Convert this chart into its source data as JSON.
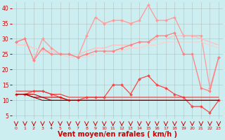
{
  "bg_color": "#cceef0",
  "grid_color": "#aaaaaa",
  "xlabel": "Vent moyen/en rafales ( km/h )",
  "xlabel_color": "#cc0000",
  "tick_color": "#cc0000",
  "xlim": [
    -0.5,
    23.5
  ],
  "ylim": [
    4,
    42
  ],
  "yticks": [
    5,
    10,
    15,
    20,
    25,
    30,
    35,
    40
  ],
  "xticks": [
    0,
    1,
    2,
    3,
    4,
    5,
    6,
    7,
    8,
    9,
    10,
    11,
    12,
    13,
    14,
    15,
    16,
    17,
    18,
    19,
    20,
    21,
    22,
    23
  ],
  "series": [
    {
      "x": [
        0,
        1,
        2,
        3,
        4,
        5,
        6,
        7,
        8,
        9,
        10,
        11,
        12,
        13,
        14,
        15,
        16,
        17,
        18,
        19,
        20,
        21,
        22,
        23
      ],
      "y": [
        29,
        30,
        23,
        30,
        27,
        25,
        25,
        24,
        31,
        37,
        35,
        36,
        36,
        35,
        36,
        41,
        36,
        36,
        37,
        31,
        31,
        31,
        14,
        24
      ],
      "color": "#ff9999",
      "lw": 0.9,
      "marker": "D",
      "ms": 2.0
    },
    {
      "x": [
        0,
        1,
        2,
        3,
        4,
        5,
        6,
        7,
        8,
        9,
        10,
        11,
        12,
        13,
        14,
        15,
        16,
        17,
        18,
        19,
        20,
        21,
        22,
        23
      ],
      "y": [
        28,
        28,
        27,
        26,
        26,
        25,
        25,
        25,
        26,
        27,
        27,
        28,
        28,
        28,
        29,
        29,
        30,
        30,
        31,
        31,
        31,
        30,
        29,
        28
      ],
      "color": "#ffbbbb",
      "lw": 0.8,
      "marker": null,
      "ms": 0
    },
    {
      "x": [
        0,
        1,
        2,
        3,
        4,
        5,
        6,
        7,
        8,
        9,
        10,
        11,
        12,
        13,
        14,
        15,
        16,
        17,
        18,
        19,
        20,
        21,
        22,
        23
      ],
      "y": [
        28,
        28,
        27,
        26,
        25,
        25,
        24,
        24,
        24,
        25,
        25,
        26,
        26,
        27,
        27,
        28,
        28,
        29,
        29,
        29,
        29,
        29,
        28,
        27
      ],
      "color": "#ffcccc",
      "lw": 0.8,
      "marker": null,
      "ms": 0
    },
    {
      "x": [
        0,
        1,
        2,
        3,
        4,
        5,
        6,
        7,
        8,
        9,
        10,
        11,
        12,
        13,
        14,
        15,
        16,
        17,
        18,
        19,
        20,
        21,
        22,
        23
      ],
      "y": [
        29,
        30,
        23,
        27,
        25,
        25,
        25,
        24,
        25,
        26,
        26,
        26,
        27,
        28,
        29,
        29,
        31,
        31,
        32,
        25,
        25,
        14,
        13,
        24
      ],
      "color": "#ff8080",
      "lw": 0.9,
      "marker": "D",
      "ms": 2.0
    },
    {
      "x": [
        0,
        1,
        2,
        3,
        4,
        5,
        6,
        7,
        8,
        9,
        10,
        11,
        12,
        13,
        14,
        15,
        16,
        17,
        18,
        19,
        20,
        21,
        22,
        23
      ],
      "y": [
        12,
        12,
        13,
        13,
        12,
        11,
        10,
        10,
        11,
        11,
        11,
        15,
        15,
        12,
        17,
        18,
        15,
        14,
        12,
        11,
        8,
        8,
        6,
        10
      ],
      "color": "#ff4444",
      "lw": 0.9,
      "marker": "D",
      "ms": 2.0
    },
    {
      "x": [
        0,
        1,
        2,
        3,
        4,
        5,
        6,
        7,
        8,
        9,
        10,
        11,
        12,
        13,
        14,
        15,
        16,
        17,
        18,
        19,
        20,
        21,
        22,
        23
      ],
      "y": [
        13,
        13,
        13,
        13,
        12,
        12,
        11,
        11,
        11,
        11,
        11,
        11,
        11,
        11,
        11,
        11,
        11,
        11,
        11,
        11,
        11,
        11,
        11,
        11
      ],
      "color": "#ee3333",
      "lw": 0.8,
      "marker": null,
      "ms": 0
    },
    {
      "x": [
        0,
        1,
        2,
        3,
        4,
        5,
        6,
        7,
        8,
        9,
        10,
        11,
        12,
        13,
        14,
        15,
        16,
        17,
        18,
        19,
        20,
        21,
        22,
        23
      ],
      "y": [
        12,
        12,
        12,
        11,
        11,
        11,
        10,
        10,
        10,
        10,
        10,
        10,
        10,
        10,
        10,
        10,
        10,
        10,
        10,
        10,
        10,
        10,
        10,
        10
      ],
      "color": "#cc0000",
      "lw": 0.8,
      "marker": null,
      "ms": 0
    },
    {
      "x": [
        0,
        1,
        2,
        3,
        4,
        5,
        6,
        7,
        8,
        9,
        10,
        11,
        12,
        13,
        14,
        15,
        16,
        17,
        18,
        19,
        20,
        21,
        22,
        23
      ],
      "y": [
        12,
        12,
        11,
        11,
        10,
        10,
        10,
        10,
        10,
        10,
        10,
        10,
        10,
        10,
        10,
        10,
        10,
        10,
        10,
        10,
        10,
        10,
        10,
        10
      ],
      "color": "#aa0000",
      "lw": 0.8,
      "marker": null,
      "ms": 0
    },
    {
      "x": [
        0,
        1,
        2,
        3,
        4,
        5,
        6,
        7,
        8,
        9,
        10,
        11,
        12,
        13,
        14,
        15,
        16,
        17,
        18,
        19,
        20,
        21,
        22,
        23
      ],
      "y": [
        12,
        12,
        11,
        10,
        10,
        10,
        10,
        10,
        10,
        10,
        10,
        10,
        10,
        10,
        10,
        10,
        10,
        10,
        10,
        10,
        10,
        10,
        10,
        10
      ],
      "color": "#880000",
      "lw": 0.8,
      "marker": null,
      "ms": 0
    }
  ],
  "arrow_color": "#cc0000",
  "ylabel_fontsize": 6,
  "xlabel_fontsize": 7
}
